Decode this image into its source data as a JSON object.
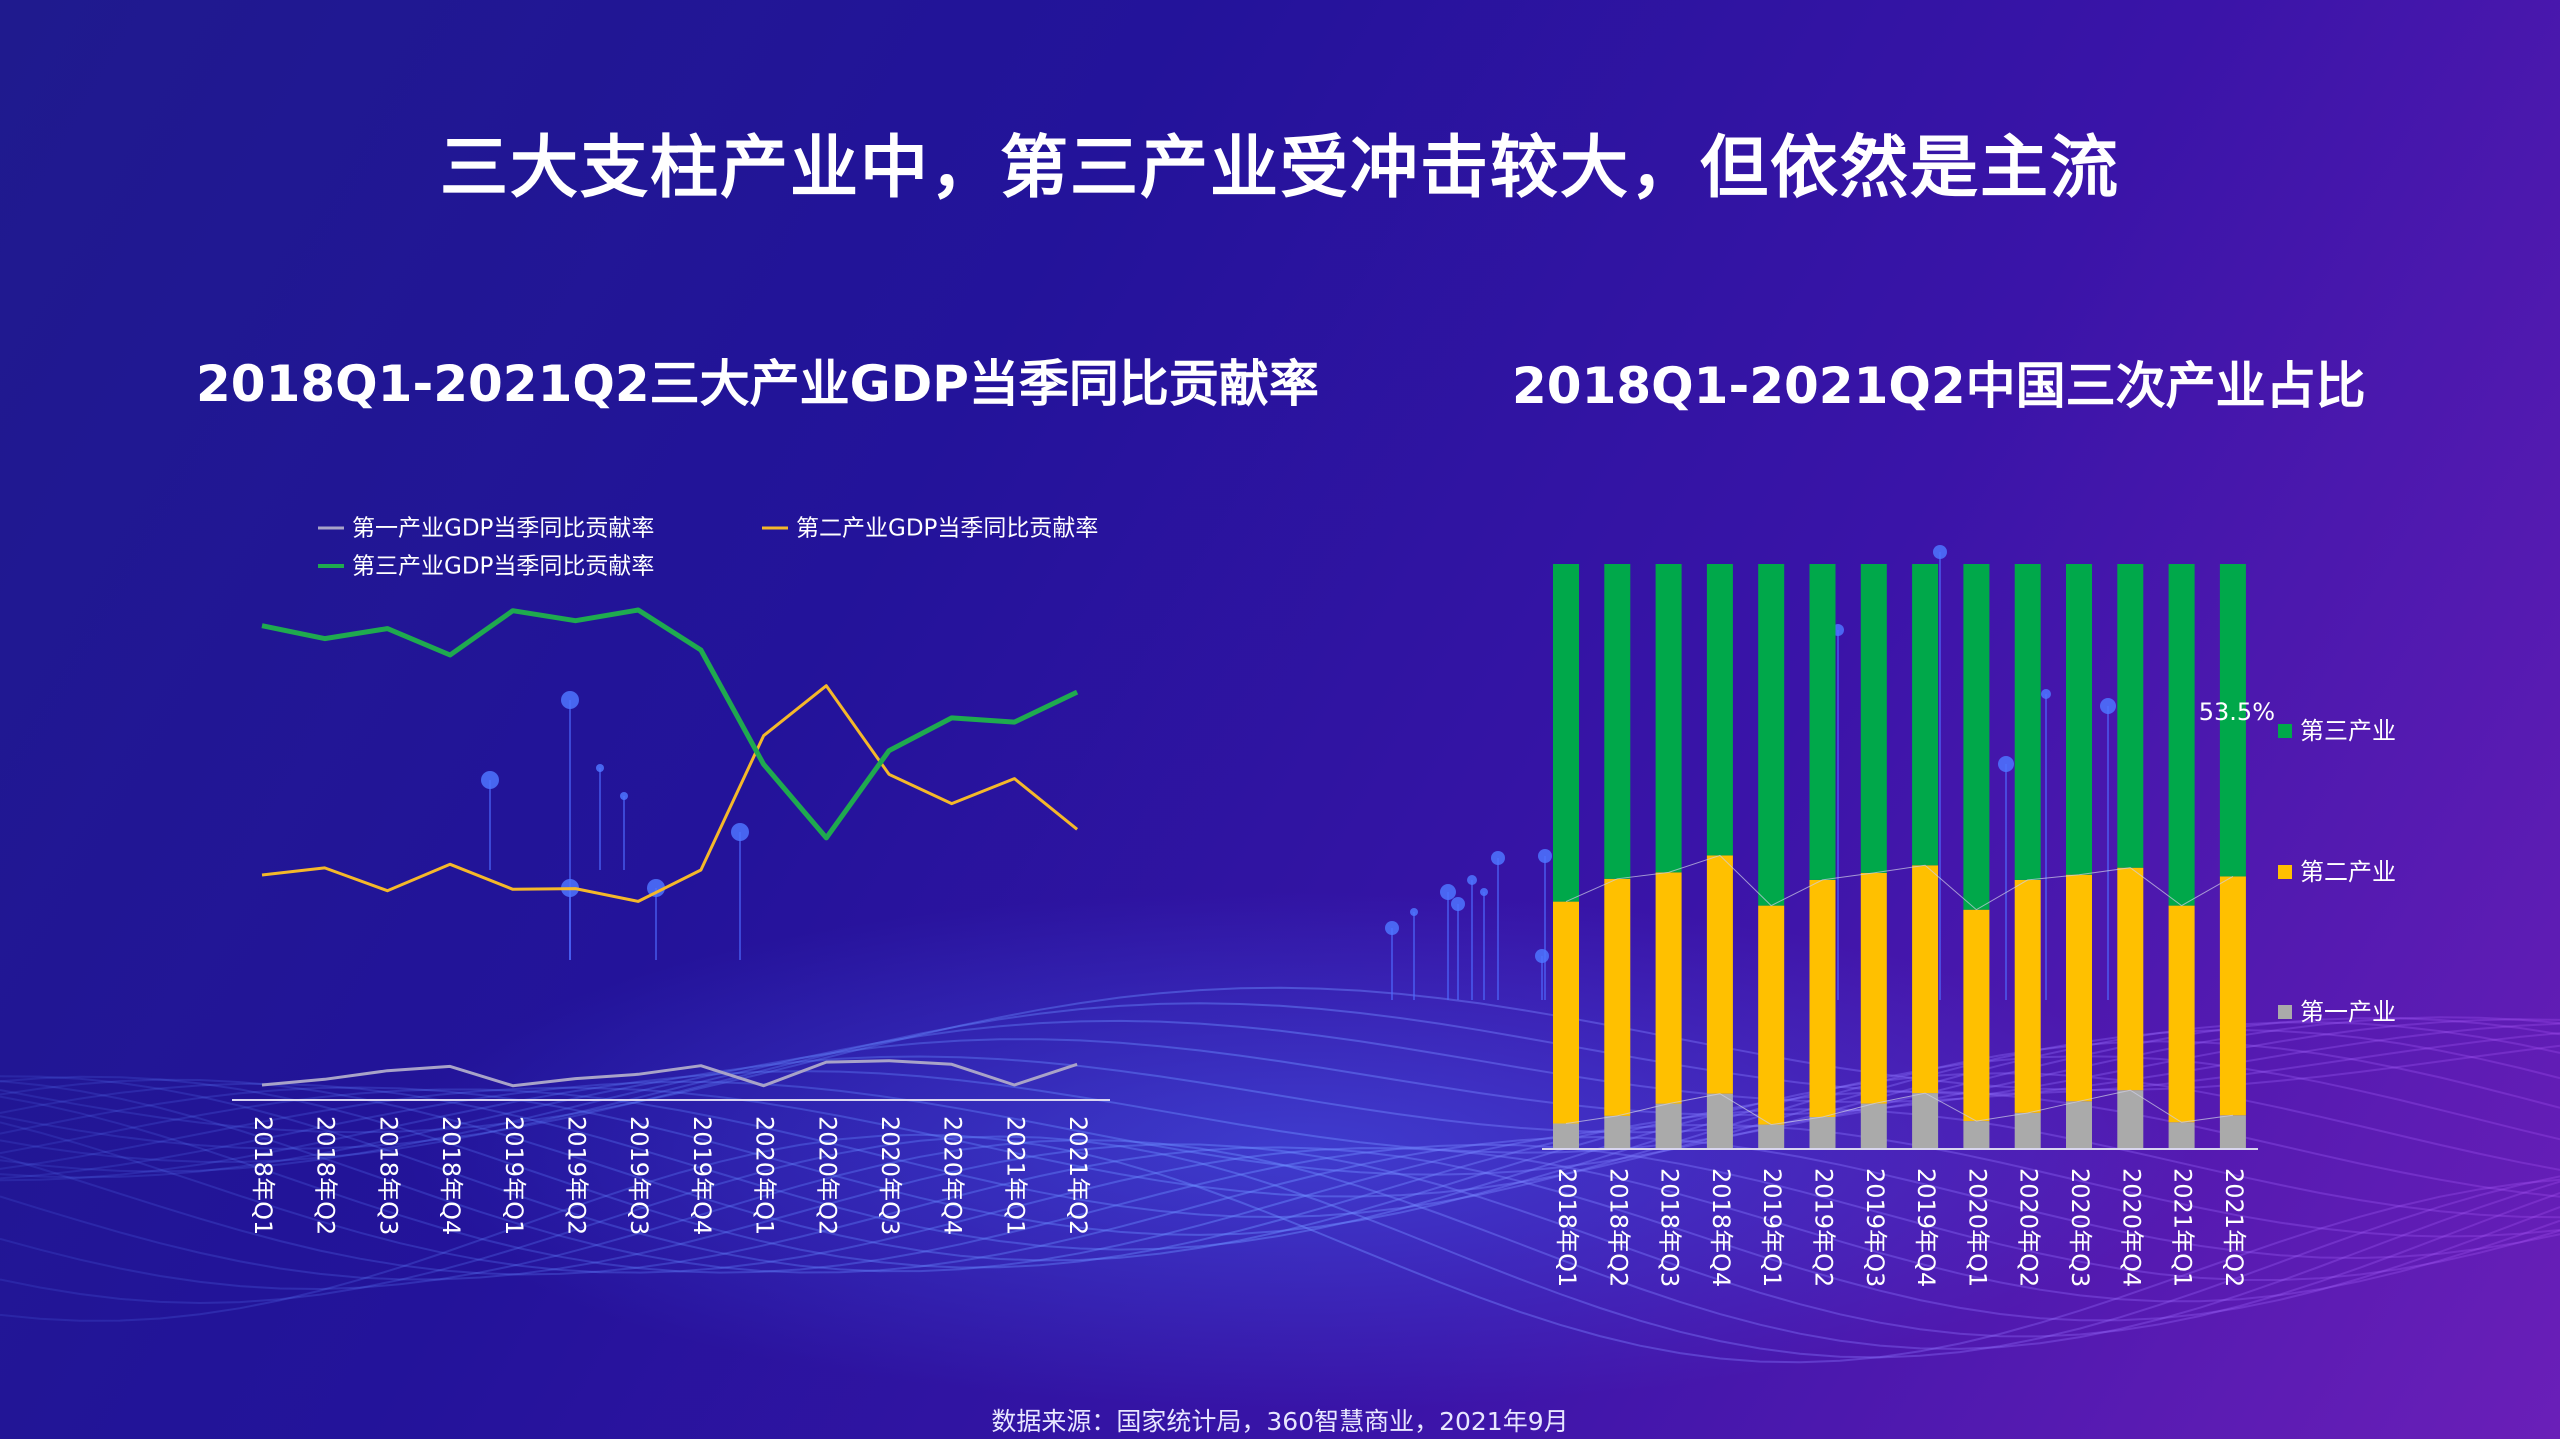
{
  "title": "三大支柱产业中，第三产业受冲击较大，但依然是主流",
  "source": "数据来源：国家统计局，360智慧商业，2021年9月",
  "colors": {
    "primary": "#aaaaaa",
    "secondary": "#ffc000",
    "tertiary": "#00a84a",
    "primary_line": "#a8a3c8",
    "secondary_line": "#f5b82a",
    "tertiary_line": "#1faa4f"
  },
  "chart_data": [
    {
      "type": "line",
      "title": "2018Q1-2021Q2三大产业GDP当季同比贡献率",
      "legend_position": "top",
      "categories": [
        "2018年Q1",
        "2018年Q2",
        "2018年Q3",
        "2018年Q4",
        "2019年Q1",
        "2019年Q2",
        "2019年Q3",
        "2019年Q4",
        "2020年Q1",
        "2020年Q2",
        "2020年Q3",
        "2020年Q4",
        "2021年Q1",
        "2021年Q2"
      ],
      "series": [
        {
          "name": "第一产业GDP当季同比贡献率",
          "values": [
            2.1,
            2.9,
            4.1,
            4.7,
            2.0,
            3.0,
            3.6,
            4.8,
            2.0,
            5.3,
            5.5,
            5.0,
            2.1,
            5.0
          ]
        },
        {
          "name": "第二产业GDP当季同比贡献率",
          "values": [
            31.5,
            32.5,
            29.3,
            33.0,
            29.5,
            29.6,
            27.8,
            32.2,
            51.0,
            58.0,
            45.6,
            41.5,
            45.0,
            37.9
          ]
        },
        {
          "name": "第三产业GDP当季同比贡献率",
          "values": [
            66.4,
            64.6,
            66.0,
            62.3,
            68.5,
            67.1,
            68.6,
            63.0,
            47.0,
            36.7,
            48.9,
            53.5,
            52.9,
            57.1
          ]
        }
      ],
      "ylim": [
        0,
        70
      ],
      "grid": false
    },
    {
      "type": "bar",
      "stacked": true,
      "percent": true,
      "title": "2018Q1-2021Q2中国三次产业占比",
      "legend_position": "right",
      "categories": [
        "2018年Q1",
        "2018年Q2",
        "2018年Q3",
        "2018年Q4",
        "2019年Q1",
        "2019年Q2",
        "2019年Q3",
        "2019年Q4",
        "2020年Q1",
        "2020年Q2",
        "2020年Q3",
        "2020年Q4",
        "2021年Q1",
        "2021年Q2"
      ],
      "series": [
        {
          "name": "第一产业",
          "values": [
            4.2,
            5.5,
            7.6,
            9.3,
            4.0,
            5.3,
            7.6,
            9.4,
            4.6,
            6.0,
            8.0,
            9.9,
            4.4,
            5.6
          ]
        },
        {
          "name": "第二产业",
          "values": [
            38.0,
            40.6,
            39.6,
            40.8,
            37.5,
            40.6,
            39.5,
            39.0,
            36.2,
            39.9,
            38.8,
            38.1,
            37.1,
            40.9
          ]
        },
        {
          "name": "第三产业",
          "values": [
            57.8,
            53.9,
            52.8,
            49.9,
            58.5,
            54.1,
            52.9,
            51.6,
            59.2,
            54.1,
            53.2,
            52.0,
            58.5,
            53.5
          ]
        }
      ],
      "data_labels": [
        {
          "category": "2021年Q2",
          "series": "第三产业",
          "text": "53.5%"
        }
      ],
      "ylim": [
        0,
        100
      ],
      "grid": false
    }
  ]
}
